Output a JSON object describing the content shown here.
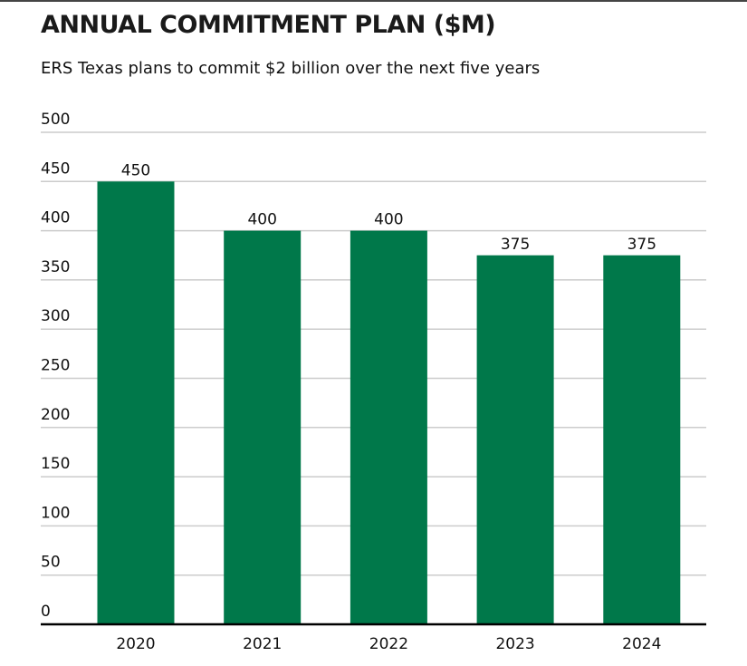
{
  "chart_data": {
    "type": "bar",
    "title": "ANNUAL COMMITMENT PLAN ($M)",
    "subtitle": "ERS Texas plans to commit $2 billion over the next five years",
    "categories": [
      "2020",
      "2021",
      "2022",
      "2023",
      "2024"
    ],
    "values": [
      450,
      400,
      400,
      375,
      375
    ],
    "data_labels": [
      "450",
      "400",
      "400",
      "375",
      "375"
    ],
    "xlabel": "",
    "ylabel": "",
    "ylim": [
      0,
      500
    ],
    "yticks": [
      "0",
      "50",
      "100",
      "150",
      "200",
      "250",
      "300",
      "350",
      "400",
      "450",
      "500"
    ],
    "grid": true,
    "bar_color": "#00784A",
    "grid_color": "#CCCCCC",
    "axis_color": "#000000"
  }
}
